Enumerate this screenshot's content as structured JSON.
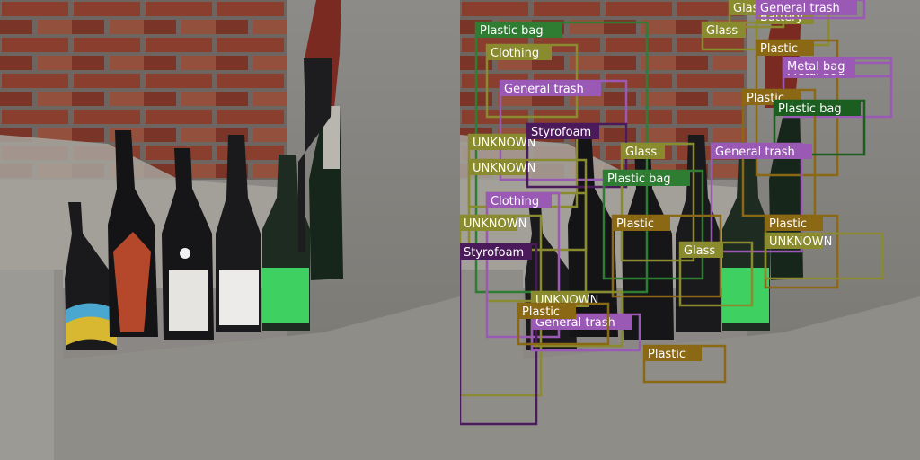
{
  "panels": {
    "left": {
      "kind": "photo"
    },
    "right": {
      "kind": "photo-with-detections"
    }
  },
  "colors": {
    "purple": "#9b59b6",
    "olive": "#8a8a2e",
    "green": "#2e7d32",
    "darkgreen": "#1b5e20",
    "brown": "#8b6914",
    "darkpurple": "#4a1a5a",
    "pink": "#c0506a"
  },
  "detections": [
    {
      "label": "Glass",
      "color": "olive"
    },
    {
      "label": "Battery",
      "color": "olive"
    },
    {
      "label": "General trash",
      "color": "purple"
    },
    {
      "label": "Plastic bag",
      "color": "green"
    },
    {
      "label": "Glass",
      "color": "olive"
    },
    {
      "label": "Plastic",
      "color": "brown"
    },
    {
      "label": "Clothing",
      "color": "olive"
    },
    {
      "label": "Metal bag",
      "color": "purple"
    },
    {
      "label": "Plastic",
      "color": "brown"
    },
    {
      "label": "Plastic bag",
      "color": "darkgreen"
    },
    {
      "label": "General trash",
      "color": "purple"
    },
    {
      "label": "UNKNOWN",
      "color": "olive"
    },
    {
      "label": "Styrofoam",
      "color": "darkpurple"
    },
    {
      "label": "Clothing",
      "color": "olive"
    },
    {
      "label": "General trash",
      "color": "purple"
    },
    {
      "label": "Glass",
      "color": "olive"
    },
    {
      "label": "UNKNOWN",
      "color": "olive"
    },
    {
      "label": "Plastic bag",
      "color": "green"
    },
    {
      "label": "Clothing",
      "color": "purple"
    },
    {
      "label": "UNKNOWN",
      "color": "olive"
    },
    {
      "label": "Plastic",
      "color": "brown"
    },
    {
      "label": "Styrofoam",
      "color": "darkpurple"
    },
    {
      "label": "Glass",
      "color": "olive"
    },
    {
      "label": "Plastic",
      "color": "brown"
    },
    {
      "label": "UNKNOWN",
      "color": "olive"
    },
    {
      "label": "UNKNOWN",
      "color": "olive"
    },
    {
      "label": "General trash",
      "color": "purple"
    },
    {
      "label": "Plastic",
      "color": "brown"
    },
    {
      "label": "Plastic",
      "color": "brown"
    },
    {
      "label": "Metal bag",
      "color": "purple"
    }
  ]
}
